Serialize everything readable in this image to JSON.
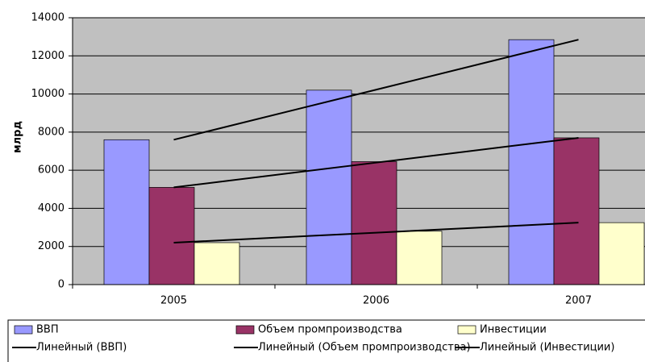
{
  "chart_data": {
    "type": "bar",
    "y_label": "млрд",
    "categories": [
      "2005",
      "2006",
      "2007"
    ],
    "series": [
      {
        "name": "ВВП",
        "color": "#9999ff",
        "values": [
          7600,
          10200,
          12850
        ]
      },
      {
        "name": "Объем промпроизводства",
        "color": "#993366",
        "values": [
          5100,
          6450,
          7700
        ]
      },
      {
        "name": "Инвестиции",
        "color": "#ffffcc",
        "values": [
          2200,
          2800,
          3250
        ]
      }
    ],
    "trendlines": [
      {
        "name": "Линейный (ВВП)",
        "color": "#000000",
        "values": [
          7600,
          10225,
          12850
        ]
      },
      {
        "name": "Линейный (Объем промпроизводства)",
        "color": "#000000",
        "values": [
          5100,
          6400,
          7700
        ]
      },
      {
        "name": "Линейный (Инвестиции)",
        "color": "#000000",
        "values": [
          2200,
          2725,
          3250
        ]
      }
    ],
    "ylim": [
      0,
      14000
    ],
    "yticks": [
      0,
      2000,
      4000,
      6000,
      8000,
      10000,
      12000,
      14000
    ],
    "grid": true
  }
}
